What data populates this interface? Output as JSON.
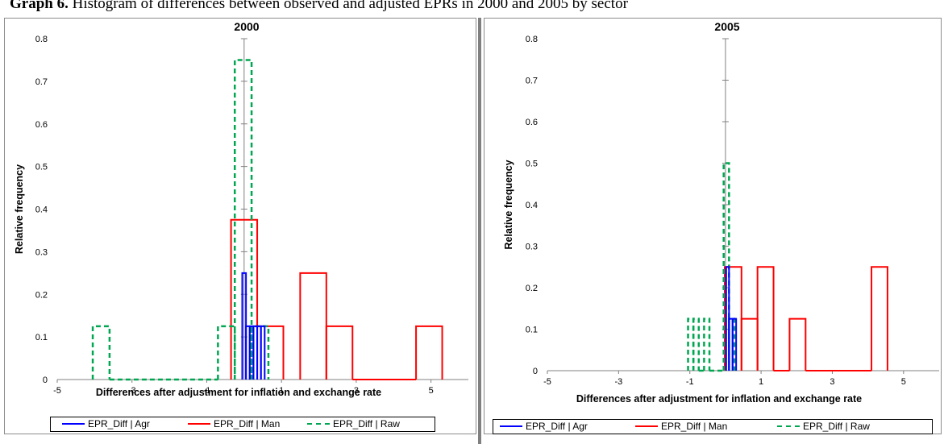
{
  "caption": {
    "bold_prefix": "Graph 6.",
    "text": " Histogram of differences between observed and adjusted EPRs in 2000 and 2005 by sector"
  },
  "colors": {
    "agr": "#0000ff",
    "man": "#ff0000",
    "raw": "#00a651",
    "axis": "#808080",
    "border": "#8c8c8c"
  },
  "legend": [
    {
      "name": "EPR_Diff | Agr",
      "color": "#0000ff",
      "dash": "solid"
    },
    {
      "name": "EPR_Diff | Man",
      "color": "#ff0000",
      "dash": "solid"
    },
    {
      "name": "EPR_Diff | Raw",
      "color": "#00a651",
      "dash": "dashed"
    }
  ],
  "chart_data": [
    {
      "type": "histogram-step",
      "title": "2000",
      "xlabel": "Differences after adjustment for inflation and exchange rate",
      "ylabel": "Relative frequency",
      "xlim": [
        -5,
        6
      ],
      "ylim": [
        0,
        0.8
      ],
      "xticks": [
        -5,
        -3,
        -1,
        1,
        3,
        5
      ],
      "yticks": [
        0,
        0.1,
        0.2,
        0.3,
        0.4,
        0.5,
        0.6,
        0.7,
        0.8
      ],
      "series": [
        {
          "name": "EPR_Diff | Agr",
          "bins": [
            [
              -0.05,
              0.05,
              0.25
            ],
            [
              0.05,
              0.15,
              0.125
            ],
            [
              0.15,
              0.25,
              0.125
            ],
            [
              0.25,
              0.35,
              0.125
            ],
            [
              0.35,
              0.45,
              0.125
            ],
            [
              0.45,
              0.55,
              0.125
            ]
          ]
        },
        {
          "name": "EPR_Diff | Man",
          "bins": [
            [
              -0.35,
              0.35,
              0.375
            ],
            [
              0.35,
              1.05,
              0.125
            ],
            [
              1.5,
              2.2,
              0.25
            ],
            [
              2.2,
              2.9,
              0.125
            ],
            [
              2.9,
              4.6,
              0
            ],
            [
              4.6,
              5.3,
              0.125
            ]
          ]
        },
        {
          "name": "EPR_Diff | Raw",
          "bins": [
            [
              -4.05,
              -3.6,
              0.125
            ],
            [
              -3.6,
              -0.7,
              0
            ],
            [
              -0.7,
              -0.25,
              0.125
            ],
            [
              -0.25,
              0.2,
              0.75
            ],
            [
              0.2,
              0.65,
              0.125
            ]
          ]
        }
      ]
    },
    {
      "type": "histogram-step",
      "title": "2005",
      "xlabel": "Differences after adjustment for inflation and exchange rate",
      "ylabel": "Relative frequency",
      "xlim": [
        -5,
        6
      ],
      "ylim": [
        0,
        0.8
      ],
      "xticks": [
        -5,
        -3,
        -1,
        1,
        3,
        5
      ],
      "yticks": [
        0,
        0.1,
        0.2,
        0.3,
        0.4,
        0.5,
        0.6,
        0.7,
        0.8
      ],
      "series": [
        {
          "name": "EPR_Diff | Agr",
          "bins": [
            [
              0.02,
              0.1,
              0.25
            ],
            [
              0.1,
              0.2,
              0.125
            ],
            [
              0.2,
              0.3,
              0.125
            ]
          ]
        },
        {
          "name": "EPR_Diff | Man",
          "bins": [
            [
              -0.02,
              0.45,
              0.25
            ],
            [
              0.45,
              0.9,
              0.125
            ],
            [
              0.9,
              1.35,
              0.25
            ],
            [
              1.35,
              1.8,
              0
            ],
            [
              1.8,
              2.25,
              0.125
            ],
            [
              2.25,
              4.1,
              0
            ],
            [
              4.1,
              4.55,
              0.25
            ]
          ]
        },
        {
          "name": "EPR_Diff | Raw",
          "bins": [
            [
              -1.05,
              -0.9,
              0.125
            ],
            [
              -0.9,
              -0.75,
              0.125
            ],
            [
              -0.75,
              -0.6,
              0
            ],
            [
              -0.6,
              -0.45,
              0.125
            ],
            [
              -0.45,
              -0.05,
              0
            ],
            [
              -0.05,
              0.1,
              0.5
            ],
            [
              0.1,
              0.25,
              0.125
            ]
          ]
        }
      ]
    }
  ]
}
